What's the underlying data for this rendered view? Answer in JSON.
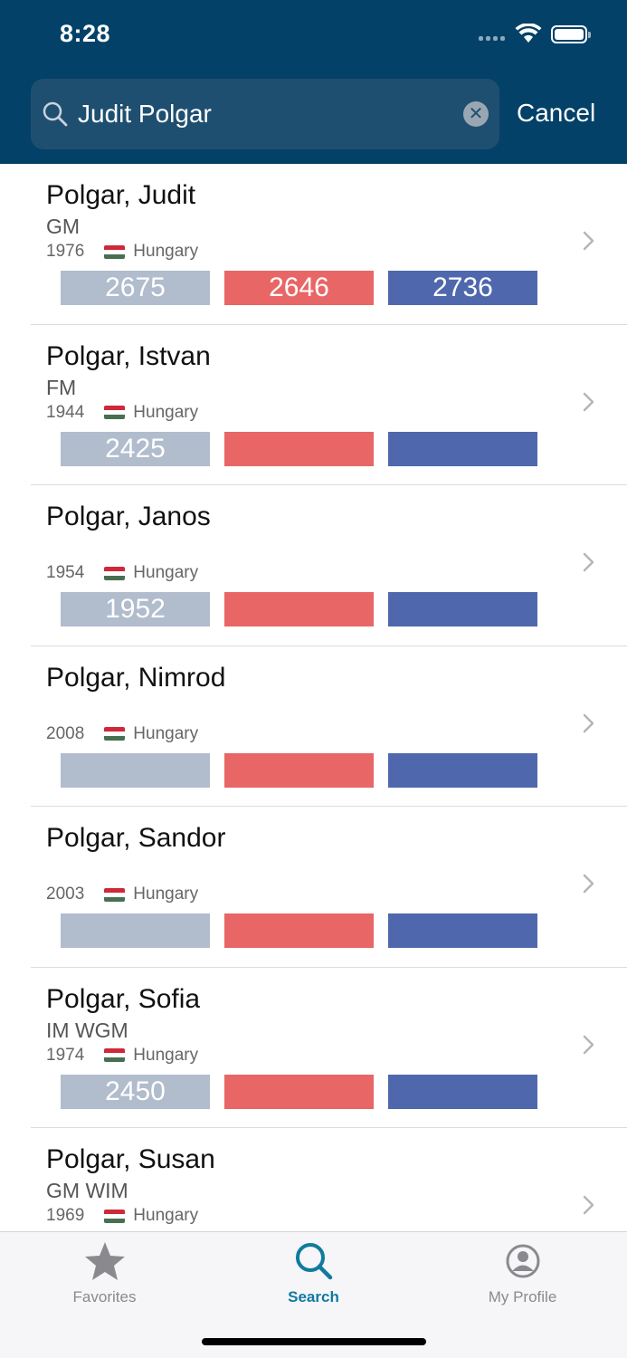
{
  "status_bar": {
    "time": "8:28"
  },
  "search": {
    "value": "Judit Polgar",
    "cancel_label": "Cancel"
  },
  "players": [
    {
      "name": "Polgar, Judit",
      "title": "GM",
      "year": "1976",
      "country": "Hungary",
      "standard": "2675",
      "rapid": "2646",
      "blitz": "2736"
    },
    {
      "name": "Polgar, Istvan",
      "title": "FM",
      "year": "1944",
      "country": "Hungary",
      "standard": "2425",
      "rapid": "",
      "blitz": ""
    },
    {
      "name": "Polgar, Janos",
      "title": "",
      "year": "1954",
      "country": "Hungary",
      "standard": "1952",
      "rapid": "",
      "blitz": ""
    },
    {
      "name": "Polgar, Nimrod",
      "title": "",
      "year": "2008",
      "country": "Hungary",
      "standard": "",
      "rapid": "",
      "blitz": ""
    },
    {
      "name": "Polgar, Sandor",
      "title": "",
      "year": "2003",
      "country": "Hungary",
      "standard": "",
      "rapid": "",
      "blitz": ""
    },
    {
      "name": "Polgar, Sofia",
      "title": "IM WGM",
      "year": "1974",
      "country": "Hungary",
      "standard": "2450",
      "rapid": "",
      "blitz": ""
    },
    {
      "name": "Polgar, Susan",
      "title": "GM WIM",
      "year": "1969",
      "country": "Hungary",
      "standard": "",
      "rapid": "",
      "blitz": ""
    }
  ],
  "tabbar": {
    "favorites_label": "Favorites",
    "search_label": "Search",
    "profile_label": "My Profile"
  },
  "colors": {
    "header": "#034168",
    "standard": "#b1bccd",
    "rapid": "#e86666",
    "blitz": "#4f68ad",
    "active_tab": "#117a9f"
  }
}
